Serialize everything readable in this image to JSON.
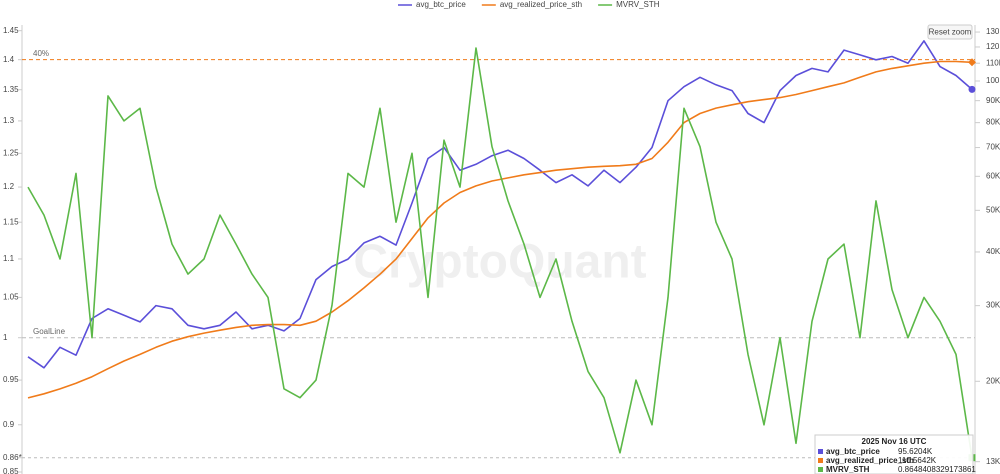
{
  "chart_data": {
    "type": "line",
    "watermark": "CryptoQuant",
    "reset_button": "Reset zoom",
    "log": true,
    "ylim": [
      0.85,
      1.46
    ],
    "yticks": [
      0.85,
      0.9,
      0.95,
      1,
      1.05,
      1.1,
      1.15,
      1.2,
      1.25,
      1.3,
      1.35,
      1.4,
      1.45,
      {
        "value": 0.8648408329173861,
        "label": "0.86*"
      }
    ],
    "y2lim": [
      12300,
      135000
    ],
    "y2ticks": [
      {
        "value": 13000,
        "label": "13K"
      },
      {
        "value": 20000,
        "label": "20K"
      },
      {
        "value": 30000,
        "label": "30K"
      },
      {
        "value": 40000,
        "label": "40K"
      },
      {
        "value": 50000,
        "label": "50K"
      },
      {
        "value": 60000,
        "label": "60K"
      },
      {
        "value": 70000,
        "label": "70K"
      },
      {
        "value": 80000,
        "label": "80K"
      },
      {
        "value": 90000,
        "label": "90K"
      },
      {
        "value": 100000,
        "label": "100K"
      },
      {
        "value": 110000,
        "label": "110K"
      },
      {
        "value": 120000,
        "label": "120K"
      },
      {
        "value": 130000,
        "label": "130K"
      }
    ],
    "reference_lines": [
      {
        "value": 1.4,
        "label": "40%",
        "color": "#f07b1a"
      },
      {
        "value": 1,
        "label": "GoalLine",
        "color": "#bbbbbb"
      }
    ],
    "series": [
      {
        "name": "avg_btc_price",
        "color": "#5b4fd9",
        "axis": "y2",
        "marker": "circle",
        "values": [
          22800,
          21500,
          24000,
          23000,
          28000,
          29500,
          28500,
          27500,
          30000,
          29500,
          27000,
          26500,
          27000,
          29000,
          26500,
          27000,
          26200,
          28000,
          34500,
          37000,
          38500,
          42000,
          43500,
          41500,
          52000,
          66000,
          70000,
          62000,
          64000,
          67000,
          69000,
          66000,
          62000,
          58000,
          60500,
          57000,
          62000,
          58000,
          63000,
          70000,
          90000,
          97000,
          102000,
          98000,
          95000,
          84000,
          80000,
          95000,
          103000,
          107000,
          105000,
          118000,
          115000,
          112000,
          114000,
          110000,
          124000,
          108000,
          103000,
          95620.4
        ]
      },
      {
        "name": "avg_realized_price_sth",
        "color": "#f07b1a",
        "axis": "y2",
        "marker": "diamond",
        "values": [
          18300,
          18700,
          19200,
          19800,
          20500,
          21400,
          22300,
          23100,
          24000,
          24800,
          25400,
          25900,
          26300,
          26700,
          27000,
          27100,
          27100,
          27000,
          27600,
          29000,
          30800,
          33000,
          35500,
          38500,
          43000,
          48000,
          52000,
          55000,
          57000,
          58500,
          59500,
          60500,
          61200,
          62000,
          62500,
          63000,
          63300,
          63500,
          64000,
          66000,
          72000,
          80000,
          84000,
          86500,
          88000,
          89500,
          90500,
          91500,
          93000,
          95000,
          97000,
          99000,
          102000,
          105000,
          107000,
          108500,
          110000,
          111000,
          111000,
          110564.2
        ]
      },
      {
        "name": "MVRV_STH",
        "color": "#5cb848",
        "marker": "square",
        "values": [
          1.2,
          1.16,
          1.1,
          1.22,
          1.0,
          1.34,
          1.3,
          1.32,
          1.2,
          1.12,
          1.08,
          1.1,
          1.16,
          1.12,
          1.08,
          1.05,
          0.94,
          0.93,
          0.95,
          1.04,
          1.22,
          1.2,
          1.32,
          1.15,
          1.25,
          1.05,
          1.27,
          1.2,
          1.42,
          1.26,
          1.18,
          1.12,
          1.05,
          1.1,
          1.02,
          0.96,
          0.93,
          0.87,
          0.95,
          0.9,
          1.05,
          1.32,
          1.26,
          1.15,
          1.1,
          0.98,
          0.9,
          1.0,
          0.88,
          1.02,
          1.1,
          1.12,
          1.0,
          1.18,
          1.06,
          1.0,
          1.05,
          1.02,
          0.98,
          0.8648408329173861
        ]
      }
    ],
    "tooltip": {
      "date": "2025 Nov 16 UTC",
      "values": [
        "95.6204K",
        "110.5642K",
        "0.8648408329173861"
      ]
    }
  }
}
